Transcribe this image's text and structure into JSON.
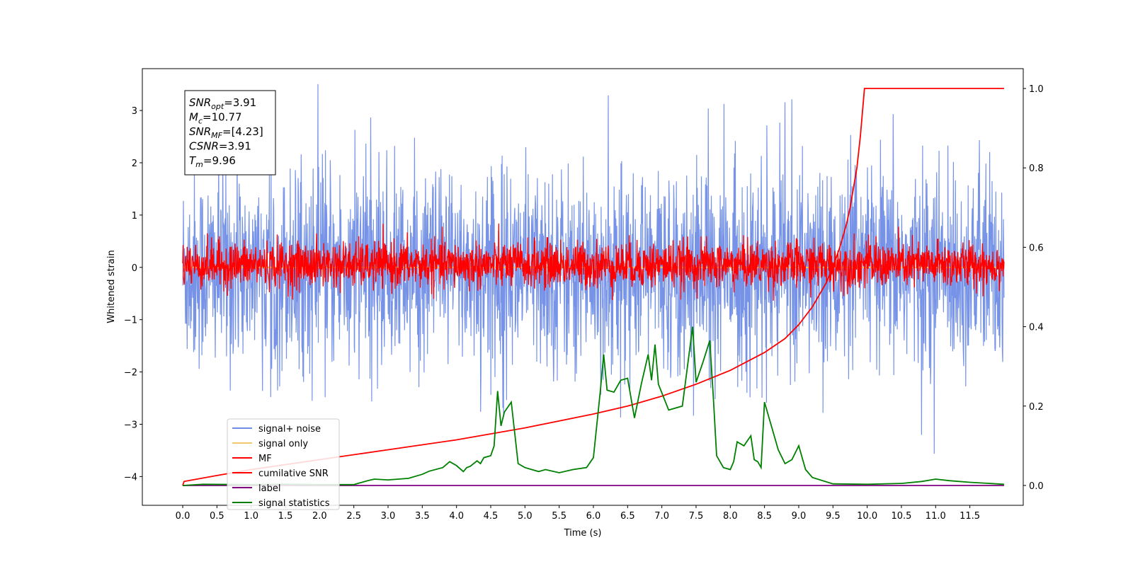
{
  "chart_data": {
    "type": "line",
    "xlabel": "Time (s)",
    "ylabel": "Whitened strain",
    "xlim": [
      -0.59,
      12.28
    ],
    "ylim": [
      -4.55,
      3.8
    ],
    "y2lim": [
      -0.05,
      1.05
    ],
    "xticks": [
      "0.0",
      "0.5",
      "1.0",
      "1.5",
      "2.0",
      "2.5",
      "3.0",
      "3.5",
      "4.0",
      "4.5",
      "5.0",
      "5.5",
      "6.0",
      "6.5",
      "7.0",
      "7.5",
      "8.0",
      "8.5",
      "9.0",
      "9.5",
      "10.0",
      "10.5",
      "11.0",
      "11.5"
    ],
    "yticks": [
      "3",
      "2",
      "1",
      "0",
      "−1",
      "−2",
      "−3",
      "−4"
    ],
    "y2ticks": [
      "1.0",
      "0.8",
      "0.6",
      "0.4",
      "0.2",
      "0.0"
    ],
    "colors": {
      "signal_noise": "#6f8de6",
      "signal_only": "#f2c969",
      "mf": "#ff0000",
      "cumulative_snr": "#ff0000",
      "label": "#800080",
      "signal_statistics": "#008000"
    },
    "legend_placement": "lower-left",
    "legend": [
      "signal+ noise",
      "signal only",
      "MF",
      "cumilative SNR",
      "label",
      "signal statistics"
    ],
    "annotation": [
      {
        "name": "SNR",
        "sub": "opt",
        "rest": "=3.91"
      },
      {
        "name": "M",
        "sub": "c",
        "rest": "=10.77"
      },
      {
        "name": "SNR",
        "sub": "MF",
        "rest": "=[4.23]"
      },
      {
        "name": "CSNR",
        "sub": "",
        "rest": "=3.91"
      },
      {
        "name": "T",
        "sub": "m",
        "rest": "=9.96"
      }
    ],
    "series": [
      {
        "name": "signal+ noise",
        "axis": "left",
        "style": "noise",
        "center": -0.05,
        "sigma": 0.95,
        "x_range": [
          0,
          12.0
        ]
      },
      {
        "name": "signal only",
        "axis": "left",
        "style": "flat",
        "x": [
          0,
          12.0
        ],
        "y": [
          0,
          0
        ]
      },
      {
        "name": "MF",
        "axis": "left",
        "style": "noise",
        "center": 0.05,
        "sigma": 0.22,
        "x_range": [
          0,
          12.0
        ]
      },
      {
        "name": "cumilative SNR",
        "axis": "right",
        "x": [
          0,
          0.02,
          0.5,
          1,
          2,
          3,
          4,
          5,
          6,
          6.5,
          7,
          7.5,
          8,
          8.5,
          8.8,
          9.0,
          9.2,
          9.4,
          9.5,
          9.6,
          9.7,
          9.75,
          9.8,
          9.85,
          9.9,
          9.93,
          9.96,
          10.5,
          11,
          11.5,
          12.0
        ],
        "y": [
          0,
          0.01,
          0.025,
          0.04,
          0.065,
          0.09,
          0.115,
          0.145,
          0.18,
          0.2,
          0.225,
          0.255,
          0.29,
          0.335,
          0.37,
          0.405,
          0.45,
          0.51,
          0.55,
          0.6,
          0.66,
          0.7,
          0.75,
          0.8,
          0.88,
          0.94,
          1.0,
          1.0,
          1.0,
          1.0,
          1.0
        ]
      },
      {
        "name": "label",
        "axis": "right",
        "x": [
          0,
          12.0
        ],
        "y": [
          0,
          0
        ]
      },
      {
        "name": "signal statistics",
        "axis": "right",
        "x": [
          0,
          0.3,
          1.0,
          1.5,
          2.0,
          2.5,
          2.7,
          2.8,
          3.0,
          3.3,
          3.5,
          3.6,
          3.8,
          3.9,
          4.0,
          4.1,
          4.15,
          4.2,
          4.3,
          4.35,
          4.4,
          4.5,
          4.55,
          4.6,
          4.65,
          4.7,
          4.8,
          4.9,
          5.0,
          5.1,
          5.2,
          5.3,
          5.5,
          5.7,
          5.9,
          6.0,
          6.1,
          6.15,
          6.2,
          6.3,
          6.4,
          6.5,
          6.6,
          6.7,
          6.8,
          6.85,
          6.9,
          6.95,
          7.1,
          7.3,
          7.45,
          7.5,
          7.6,
          7.7,
          7.75,
          7.8,
          7.9,
          8.0,
          8.05,
          8.1,
          8.2,
          8.3,
          8.35,
          8.4,
          8.45,
          8.5,
          8.6,
          8.7,
          8.8,
          8.9,
          9.0,
          9.1,
          9.2,
          9.5,
          10.0,
          10.5,
          10.8,
          11.0,
          11.2,
          11.5,
          12.0
        ],
        "y": [
          0,
          0.003,
          0.002,
          0.003,
          0.002,
          0.002,
          0.012,
          0.016,
          0.014,
          0.018,
          0.028,
          0.036,
          0.045,
          0.06,
          0.05,
          0.035,
          0.045,
          0.048,
          0.062,
          0.055,
          0.07,
          0.075,
          0.1,
          0.238,
          0.15,
          0.185,
          0.21,
          0.055,
          0.045,
          0.04,
          0.035,
          0.04,
          0.032,
          0.04,
          0.045,
          0.07,
          0.235,
          0.33,
          0.24,
          0.235,
          0.265,
          0.27,
          0.17,
          0.255,
          0.33,
          0.265,
          0.355,
          0.255,
          0.19,
          0.2,
          0.4,
          0.26,
          0.31,
          0.365,
          0.23,
          0.075,
          0.045,
          0.04,
          0.06,
          0.11,
          0.1,
          0.125,
          0.065,
          0.06,
          0.045,
          0.21,
          0.15,
          0.09,
          0.055,
          0.065,
          0.1,
          0.04,
          0.02,
          0.004,
          0.003,
          0.005,
          0.01,
          0.016,
          0.012,
          0.008,
          0.003
        ]
      }
    ]
  }
}
